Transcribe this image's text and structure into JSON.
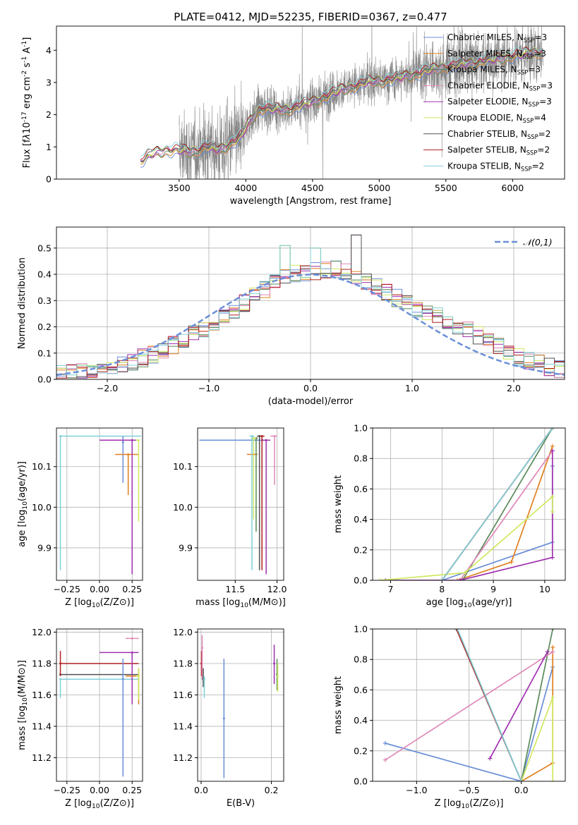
{
  "title": "PLATE=0412, MJD=52235, FIBERID=0367, z=0.477",
  "series_colors": {
    "Chabrier MILES": "#6a8fd8",
    "Salpeter MILES": "#e08020",
    "Kroupa MILES": "#5a8a5a",
    "Chabrier ELODIE": "#e088b8",
    "Salpeter ELODIE": "#a030b0",
    "Kroupa ELODIE": "#d0e860",
    "Chabrier STELIB": "#505050",
    "Salpeter STELIB": "#b02020",
    "Kroupa STELIB": "#80d0d8"
  },
  "chart_data": [
    {
      "id": "spectrum",
      "type": "line",
      "xlabel": "wavelength [Angstrom, rest frame]",
      "ylabel": "Flux [f$_\\lambda$10$^{-17}$ erg cm$^{-2}$ s$^{-1}$ A$^{-1}$]",
      "xlim": [
        2580,
        6390
      ],
      "ylim": [
        0,
        4.75
      ],
      "xticks": [
        3500,
        4000,
        4500,
        5000,
        5500,
        6000
      ],
      "yticks": [
        0,
        1,
        2,
        3,
        4
      ],
      "grid": false,
      "legend": "top-right",
      "legend_entries": [
        {
          "name": "Chabrier MILES, N$_{SSP}$=3"
        },
        {
          "name": "Salpeter MILES, N$_{SSP}$=3"
        },
        {
          "name": "Kroupa MILES, N$_{SSP}$=3"
        },
        {
          "name": "Chabrier ELODIE, N$_{SSP}$=3"
        },
        {
          "name": "Salpeter ELODIE, N$_{SSP}$=3"
        },
        {
          "name": "Kroupa ELODIE, N$_{SSP}$=4"
        },
        {
          "name": "Chabrier STELIB, N$_{SSP}$=2"
        },
        {
          "name": "Salpeter STELIB, N$_{SSP}$=2"
        },
        {
          "name": "Kroupa STELIB, N$_{SSP}$=2"
        }
      ],
      "model_continuum": [
        [
          3210,
          0.55
        ],
        [
          3300,
          0.8
        ],
        [
          3400,
          0.9
        ],
        [
          3500,
          0.9
        ],
        [
          3600,
          0.85
        ],
        [
          3700,
          1.0
        ],
        [
          3800,
          0.9
        ],
        [
          3900,
          1.15
        ],
        [
          3960,
          1.3
        ],
        [
          4000,
          1.6
        ],
        [
          4100,
          2.2
        ],
        [
          4300,
          2.15
        ],
        [
          4500,
          2.4
        ],
        [
          4700,
          2.75
        ],
        [
          4900,
          3.0
        ],
        [
          5100,
          3.1
        ],
        [
          5300,
          3.3
        ],
        [
          5500,
          3.5
        ],
        [
          5700,
          3.6
        ],
        [
          5900,
          3.75
        ],
        [
          6100,
          3.9
        ],
        [
          6220,
          3.95
        ]
      ],
      "data_note": "observed spectrum (grey) plotted from ~3500 to ~6230 with strong noise"
    },
    {
      "id": "residuals",
      "type": "histogram",
      "xlabel": "(data-model)/error",
      "ylabel": "Normed distribution",
      "xlim": [
        -2.5,
        2.5
      ],
      "ylim": [
        0,
        0.58
      ],
      "xticks": [
        -2,
        -1,
        0,
        1,
        2
      ],
      "yticks": [
        0.0,
        0.1,
        0.2,
        0.3,
        0.4,
        0.5
      ],
      "grid": true,
      "legend": "top-right",
      "legend_entries": [
        {
          "name": "$\\mathcal{N}(0,1)$"
        }
      ],
      "bin_width": 0.1,
      "reference_curve": "standard normal density",
      "envelope": [
        [
          -2.5,
          0.02
        ],
        [
          -2.0,
          0.04
        ],
        [
          -1.5,
          0.1
        ],
        [
          -1.0,
          0.2
        ],
        [
          -0.5,
          0.33
        ],
        [
          -0.2,
          0.4
        ],
        [
          0.0,
          0.41
        ],
        [
          0.3,
          0.42
        ],
        [
          0.5,
          0.38
        ],
        [
          1.0,
          0.28
        ],
        [
          1.5,
          0.2
        ],
        [
          2.0,
          0.09
        ],
        [
          2.5,
          0.03
        ]
      ],
      "peaks": [
        {
          "x": -0.25,
          "y": 0.51
        },
        {
          "x": 0.05,
          "y": 0.5
        },
        {
          "x": 0.45,
          "y": 0.55
        }
      ]
    },
    {
      "id": "age_vs_Z",
      "type": "scatter",
      "xlabel": "Z [log$_{10}$(Z/Z$_\\odot$)]",
      "ylabel": "age  [log$_{10}$(age/yr)]",
      "xlim": [
        -0.33,
        0.33
      ],
      "ylim": [
        9.82,
        10.195
      ],
      "xticks": [
        -0.25,
        0.0,
        0.25
      ],
      "yticks": [
        9.9,
        10.0,
        10.1
      ],
      "grid": true,
      "points": [
        {
          "series": "Kroupa STELIB",
          "x": -0.3,
          "y": 10.175,
          "xerr": [
            0,
            0.62
          ],
          "yerr": [
            0.33,
            0
          ]
        },
        {
          "series": "Chabrier MILES",
          "x": 0.18,
          "y": 10.16,
          "xerr": [
            0,
            0
          ],
          "yerr": [
            0.1,
            0.015
          ]
        },
        {
          "series": "Salpeter MILES",
          "x": 0.22,
          "y": 10.13,
          "xerr": [
            0.1,
            0.08
          ],
          "yerr": [
            0.1,
            0
          ]
        },
        {
          "series": "Salpeter ELODIE",
          "x": 0.25,
          "y": 10.165,
          "xerr": [
            0.25,
            0.05
          ],
          "yerr": [
            0.33,
            0
          ]
        },
        {
          "series": "Kroupa ELODIE",
          "x": 0.3,
          "y": 10.165,
          "xerr": [
            0.02,
            0
          ],
          "yerr": [
            0.2,
            0
          ]
        }
      ]
    },
    {
      "id": "age_vs_mass",
      "type": "scatter",
      "xlabel": "mass [log$_{10}$(M/M$_\\odot$)]",
      "ylabel": "",
      "xlim": [
        11.05,
        12.08
      ],
      "ylim": [
        9.82,
        10.195
      ],
      "xticks": [
        11.5,
        12.0
      ],
      "yticks": [
        9.9,
        10.0,
        10.1
      ],
      "grid": true,
      "points": [
        {
          "series": "Chabrier MILES",
          "x": 11.82,
          "y": 10.165,
          "xerr": [
            0.75,
            0
          ],
          "yerr": [
            0,
            0
          ]
        },
        {
          "series": "Salpeter MILES",
          "x": 11.72,
          "y": 10.13,
          "xerr": [
            0.08,
            0.05
          ],
          "yerr": [
            0,
            0
          ]
        },
        {
          "series": "Kroupa MILES",
          "x": 11.75,
          "y": 10.17,
          "xerr": [
            0.02,
            0.02
          ],
          "yerr": [
            0.23,
            0
          ]
        },
        {
          "series": "Chabrier ELODIE",
          "x": 11.97,
          "y": 10.175,
          "xerr": [
            0.05,
            0.03
          ],
          "yerr": [
            0.12,
            0
          ]
        },
        {
          "series": "Salpeter ELODIE",
          "x": 11.87,
          "y": 10.165,
          "xerr": [
            0.05,
            0.05
          ],
          "yerr": [
            0.33,
            0
          ]
        },
        {
          "series": "Kroupa ELODIE",
          "x": 11.72,
          "y": 10.17,
          "xerr": [
            0.03,
            0.03
          ],
          "yerr": [
            0.2,
            0
          ]
        },
        {
          "series": "Chabrier STELIB",
          "x": 11.79,
          "y": 10.175,
          "xerr": [
            0.03,
            0.03
          ],
          "yerr": [
            0.33,
            0
          ]
        },
        {
          "series": "Salpeter STELIB",
          "x": 11.82,
          "y": 10.175,
          "xerr": [
            0.03,
            0.03
          ],
          "yerr": [
            0.33,
            0
          ]
        },
        {
          "series": "Kroupa STELIB",
          "x": 11.7,
          "y": 10.175,
          "xerr": [
            0.03,
            0.03
          ],
          "yerr": [
            0.33,
            0
          ]
        }
      ]
    },
    {
      "id": "weight_vs_age",
      "type": "line",
      "xlabel": "age  [log$_{10}$(age/yr)]",
      "ylabel": "mass weight",
      "xlim": [
        6.65,
        10.4
      ],
      "ylim": [
        0,
        1
      ],
      "xticks": [
        7,
        8,
        9,
        10
      ],
      "yticks": [
        0.0,
        0.2,
        0.4,
        0.6,
        0.8,
        1.0
      ],
      "grid": true,
      "series": [
        {
          "name": "Chabrier MILES",
          "points": [
            [
              8.0,
              0
            ],
            [
              10.15,
              0.25
            ],
            [
              10.15,
              0.75
            ]
          ]
        },
        {
          "name": "Salpeter MILES",
          "points": [
            [
              8.3,
              0
            ],
            [
              9.35,
              0.12
            ],
            [
              10.15,
              0.88
            ]
          ]
        },
        {
          "name": "Kroupa MILES",
          "points": [
            [
              8.4,
              0
            ],
            [
              10.15,
              1.0
            ]
          ]
        },
        {
          "name": "Chabrier ELODIE",
          "points": [
            [
              8.35,
              0
            ],
            [
              10.15,
              0.85
            ]
          ]
        },
        {
          "name": "Salpeter ELODIE",
          "points": [
            [
              6.9,
              0
            ],
            [
              8.35,
              0.0
            ],
            [
              10.15,
              0.15
            ],
            [
              10.15,
              0.85
            ]
          ]
        },
        {
          "name": "Kroupa ELODIE",
          "points": [
            [
              6.8,
              0
            ],
            [
              8.45,
              0.05
            ],
            [
              10.15,
              0.55
            ],
            [
              10.15,
              0.45
            ]
          ]
        },
        {
          "name": "Chabrier STELIB",
          "points": [
            [
              8.0,
              0
            ],
            [
              10.15,
              1.0
            ]
          ]
        },
        {
          "name": "Salpeter STELIB",
          "points": [
            [
              8.0,
              0
            ],
            [
              10.15,
              1.0
            ]
          ]
        },
        {
          "name": "Kroupa STELIB",
          "points": [
            [
              8.0,
              0
            ],
            [
              10.15,
              1.0
            ]
          ]
        }
      ]
    },
    {
      "id": "mass_vs_Z",
      "type": "scatter",
      "xlabel": "Z [log$_{10}$(Z/Z$_\\odot$)]",
      "ylabel": "mass [log$_{10}$(M/M$_\\odot$)]",
      "xlim": [
        -0.33,
        0.33
      ],
      "ylim": [
        11.05,
        12.02
      ],
      "xticks": [
        -0.25,
        0.0,
        0.25
      ],
      "yticks": [
        11.2,
        11.4,
        11.6,
        11.8,
        12.0
      ],
      "grid": true,
      "points": [
        {
          "series": "Chabrier STELIB",
          "x": -0.3,
          "y": 11.73,
          "xerr": [
            0,
            0.6
          ],
          "yerr": [
            0,
            0
          ]
        },
        {
          "series": "Salpeter STELIB",
          "x": -0.3,
          "y": 11.8,
          "xerr": [
            0,
            0.6
          ],
          "yerr": [
            0.08,
            0.08
          ]
        },
        {
          "series": "Kroupa STELIB",
          "x": -0.3,
          "y": 11.7,
          "xerr": [
            0,
            0.6
          ],
          "yerr": [
            0.12,
            0
          ]
        },
        {
          "series": "Chabrier MILES",
          "x": 0.18,
          "y": 11.7,
          "xerr": [
            0,
            0
          ],
          "yerr": [
            0.62,
            0.13
          ]
        },
        {
          "series": "Salpeter ELODIE",
          "x": 0.25,
          "y": 11.87,
          "xerr": [
            0.25,
            0.05
          ],
          "yerr": [
            0.33,
            0
          ]
        },
        {
          "series": "Chabrier ELODIE",
          "x": 0.25,
          "y": 11.96,
          "xerr": [
            0.05,
            0.05
          ],
          "yerr": [
            0,
            0
          ]
        },
        {
          "series": "Salpeter MILES",
          "x": 0.3,
          "y": 11.72,
          "xerr": [
            0.1,
            0
          ],
          "yerr": [
            0.18,
            0.05
          ]
        },
        {
          "series": "Kroupa ELODIE",
          "x": 0.3,
          "y": 11.72,
          "xerr": [
            0.02,
            0
          ],
          "yerr": [
            0.15,
            0.05
          ]
        }
      ]
    },
    {
      "id": "mass_vs_ebv",
      "type": "scatter",
      "xlabel": "E(B-V)",
      "ylabel": "",
      "xlim": [
        -0.01,
        0.235
      ],
      "ylim": [
        11.05,
        12.02
      ],
      "xticks": [
        0.0,
        0.2
      ],
      "yticks": [
        11.2,
        11.4,
        11.6,
        11.8,
        12.0
      ],
      "grid": true,
      "points": [
        {
          "series": "Salpeter STELIB",
          "x": 0.001,
          "y": 11.8,
          "yerr": [
            0.08,
            0.08
          ]
        },
        {
          "series": "Chabrier ELODIE",
          "x": 0.003,
          "y": 11.9,
          "yerr": [
            0.2,
            0.08
          ]
        },
        {
          "series": "Chabrier STELIB",
          "x": 0.006,
          "y": 11.7,
          "yerr": [
            0.05,
            0.07
          ]
        },
        {
          "series": "Kroupa STELIB",
          "x": 0.009,
          "y": 11.7,
          "yerr": [
            0.12,
            0.02
          ]
        },
        {
          "series": "Chabrier MILES",
          "x": 0.065,
          "y": 11.45,
          "yerr": [
            0.38,
            0.38
          ]
        },
        {
          "series": "Salpeter ELODIE",
          "x": 0.208,
          "y": 11.8,
          "yerr": [
            0.13,
            0.12
          ]
        },
        {
          "series": "Kroupa MILES",
          "x": 0.216,
          "y": 11.73,
          "yerr": [
            0.1,
            0.1
          ]
        },
        {
          "series": "Kroupa ELODIE",
          "x": 0.218,
          "y": 11.72,
          "yerr": [
            0.1,
            0.08
          ]
        }
      ]
    },
    {
      "id": "weight_vs_Z",
      "type": "line",
      "xlabel": "Z [log$_{10}$(Z/Z$_\\odot$)]",
      "ylabel": "mass weight",
      "xlim": [
        -1.42,
        0.42
      ],
      "ylim": [
        0,
        1
      ],
      "xticks": [
        -1.0,
        -0.5,
        0.0
      ],
      "yticks": [
        0.0,
        0.2,
        0.4,
        0.6,
        0.8,
        1.0
      ],
      "grid": true,
      "series": [
        {
          "name": "Chabrier MILES",
          "points": [
            [
              -1.3,
              0.25
            ],
            [
              0.0,
              0.0
            ],
            [
              0.3,
              0.75
            ]
          ]
        },
        {
          "name": "Salpeter MILES",
          "points": [
            [
              0.0,
              0.0
            ],
            [
              0.3,
              0.12
            ],
            [
              0.3,
              0.88
            ]
          ]
        },
        {
          "name": "Kroupa MILES",
          "points": [
            [
              0.0,
              0.0
            ],
            [
              0.3,
              1.0
            ]
          ]
        },
        {
          "name": "Chabrier ELODIE",
          "points": [
            [
              -1.3,
              0.14
            ],
            [
              0.3,
              0.85
            ]
          ]
        },
        {
          "name": "Salpeter ELODIE",
          "points": [
            [
              -0.3,
              0.15
            ],
            [
              0.25,
              0.85
            ]
          ]
        },
        {
          "name": "Kroupa ELODIE",
          "points": [
            [
              0.0,
              0.0
            ],
            [
              0.3,
              0.55
            ],
            [
              0.3,
              0.0
            ]
          ]
        },
        {
          "name": "Chabrier STELIB",
          "points": [
            [
              -0.62,
              1.0
            ],
            [
              0.0,
              0.0
            ]
          ]
        },
        {
          "name": "Salpeter STELIB",
          "points": [
            [
              -0.62,
              1.0
            ],
            [
              0.0,
              0.0
            ]
          ]
        },
        {
          "name": "Kroupa STELIB",
          "points": [
            [
              -0.61,
              1.0
            ],
            [
              0.0,
              0.0
            ]
          ]
        }
      ]
    }
  ]
}
